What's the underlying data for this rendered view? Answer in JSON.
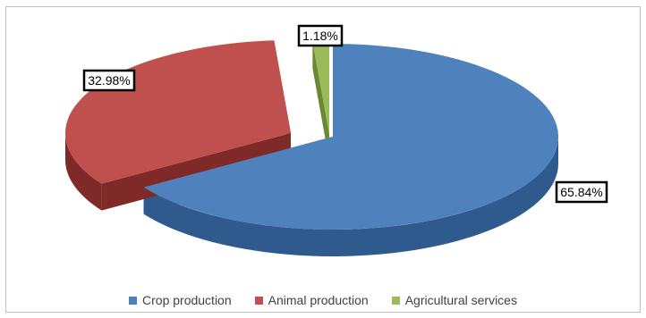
{
  "chart_data": {
    "type": "pie",
    "style": "3d-exploded",
    "legend_position": "bottom",
    "series": [
      {
        "name": "Crop production",
        "value": 65.84,
        "label": "65.84%",
        "color": "#4f81bd",
        "side_color": "#2e5a8e"
      },
      {
        "name": "Animal production",
        "value": 32.98,
        "label": "32.98%",
        "color": "#c0504d",
        "side_color": "#7f2a28"
      },
      {
        "name": "Agricultural services",
        "value": 1.18,
        "label": "1.18%",
        "color": "#9bbb59",
        "side_color": "#6a8a32"
      }
    ]
  }
}
